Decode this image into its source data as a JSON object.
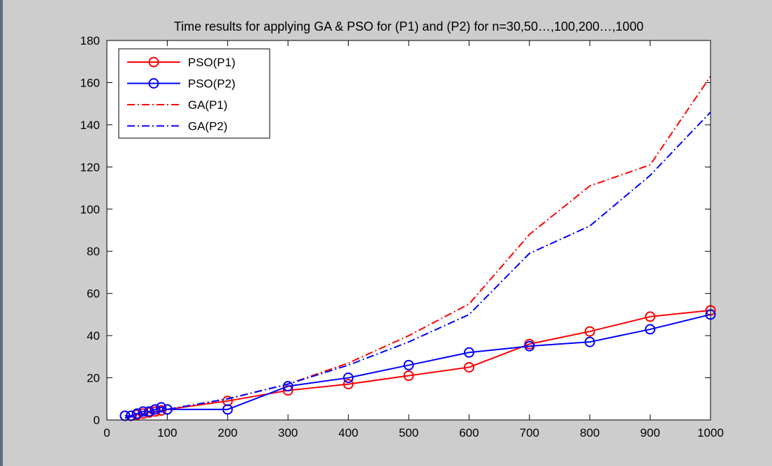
{
  "chart_data": {
    "type": "line",
    "title": "Time results for applying GA & PSO for (P1) and (P2) for n=30,50…,100,200…,1000",
    "xlabel": "",
    "ylabel": "",
    "xlim": [
      0,
      1000
    ],
    "ylim": [
      0,
      180
    ],
    "xticks": [
      0,
      100,
      200,
      300,
      400,
      500,
      600,
      700,
      800,
      900,
      1000
    ],
    "yticks": [
      0,
      20,
      40,
      60,
      80,
      100,
      120,
      140,
      160,
      180
    ],
    "grid": false,
    "legend_position": "top-left",
    "series": [
      {
        "name": "PSO(P1)",
        "color": "#ff0000",
        "line_style": "solid",
        "marker": "circle",
        "x": [
          30,
          40,
          50,
          60,
          70,
          80,
          90,
          100,
          200,
          300,
          400,
          500,
          600,
          700,
          800,
          900,
          1000
        ],
        "y": [
          2,
          2,
          2.5,
          3,
          3.5,
          4,
          4.5,
          5,
          9,
          14,
          17,
          21,
          25,
          36,
          42,
          49,
          52
        ]
      },
      {
        "name": "PSO(P2)",
        "color": "#0000ff",
        "line_style": "solid",
        "marker": "circle",
        "x": [
          30,
          40,
          50,
          60,
          70,
          80,
          90,
          100,
          200,
          300,
          400,
          500,
          600,
          700,
          800,
          900,
          1000
        ],
        "y": [
          2,
          2,
          3,
          4,
          4,
          5,
          6,
          5,
          5,
          16,
          20,
          26,
          32,
          35,
          37,
          43,
          50
        ]
      },
      {
        "name": "GA(P1)",
        "color": "#ff0000",
        "line_style": "dashdot",
        "marker": "none",
        "x": [
          30,
          50,
          100,
          200,
          300,
          400,
          500,
          600,
          700,
          800,
          900,
          1000
        ],
        "y": [
          1,
          2,
          5,
          10,
          17,
          27,
          40,
          55,
          88,
          111,
          121,
          163
        ]
      },
      {
        "name": "GA(P2)",
        "color": "#0000ff",
        "line_style": "dashdot",
        "marker": "none",
        "x": [
          30,
          50,
          100,
          200,
          300,
          400,
          500,
          600,
          700,
          800,
          900,
          1000
        ],
        "y": [
          1,
          2,
          5,
          10,
          17,
          26,
          37,
          50,
          79,
          92,
          116,
          146
        ]
      }
    ]
  }
}
